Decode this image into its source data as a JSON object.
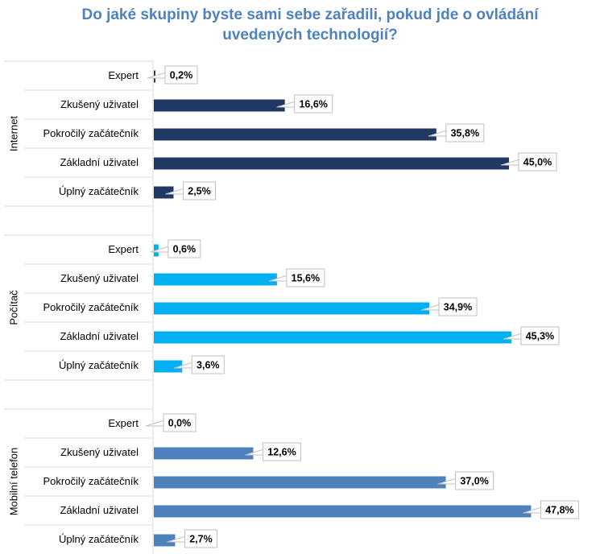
{
  "chart_data": {
    "type": "bar",
    "orientation": "horizontal",
    "title_lines": [
      "Do jaké skupiny byste sami sebe zařadili, pokud jde o ovládání",
      "uvedených technologií?"
    ],
    "categories": [
      "Expert",
      "Zkušený uživatel",
      "Pokročilý začátečník",
      "Základní uživatel",
      "Úplný začátečník"
    ],
    "groups": [
      {
        "name": "Internet",
        "color": "#1f3864",
        "values": [
          0.2,
          16.6,
          35.8,
          45.0,
          2.5
        ],
        "labels": [
          "0,2%",
          "16,6%",
          "35,8%",
          "45,0%",
          "2,5%"
        ]
      },
      {
        "name": "Počítač",
        "color": "#00b0f0",
        "values": [
          0.6,
          15.6,
          34.9,
          45.3,
          3.6
        ],
        "labels": [
          "0,6%",
          "15,6%",
          "34,9%",
          "45,3%",
          "3,6%"
        ]
      },
      {
        "name": "Mobilní telefon",
        "color": "#4f81bd",
        "values": [
          0.0,
          12.6,
          37.0,
          47.8,
          2.7
        ],
        "labels": [
          "0,0%",
          "12,6%",
          "37,0%",
          "47,8%",
          "2,7%"
        ]
      }
    ],
    "xlim": [
      0,
      100
    ],
    "grid": false,
    "legend": "none"
  }
}
